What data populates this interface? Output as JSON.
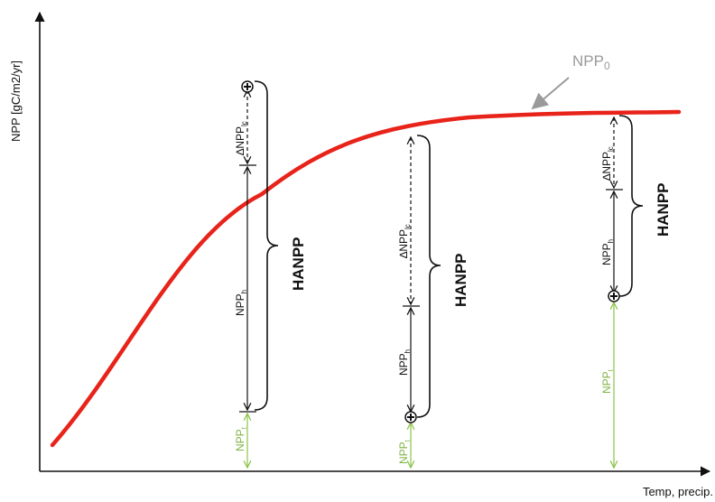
{
  "y_axis_label": "NPP [gC/m2/yr]",
  "x_axis_label": "Temp, precip.",
  "curve_label": {
    "base": "NPP",
    "sub": "0"
  },
  "hanpp_label": "HANPP",
  "npp_h": {
    "base": "NPP",
    "sub": "h"
  },
  "delta_npp_lc": {
    "base": "∆NPP",
    "sub": "lc"
  },
  "npp_t": {
    "base": "NPP",
    "sub": "t"
  },
  "colors": {
    "curve": "#e8231a",
    "green": "#8bc34a",
    "gray": "#9a9a9a"
  }
}
